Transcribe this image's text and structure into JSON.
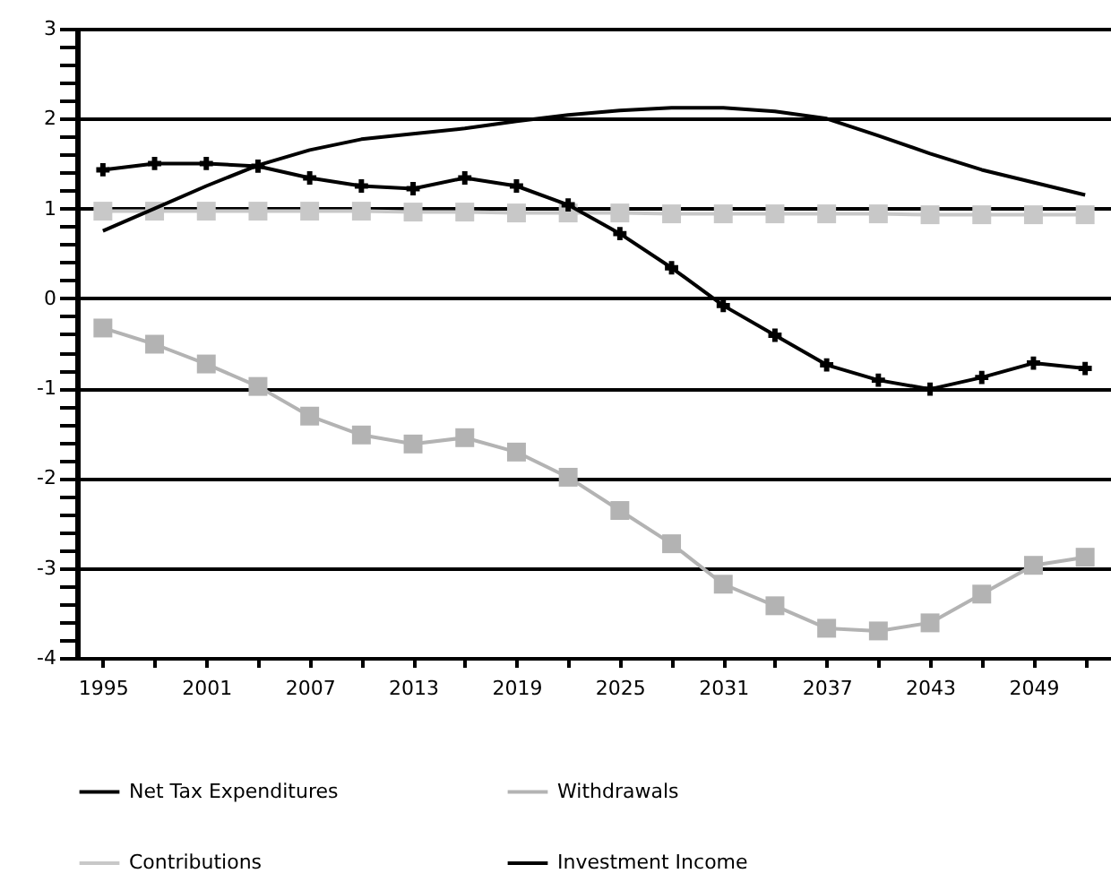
{
  "chart_data": {
    "type": "line",
    "x": [
      1995,
      1998,
      2001,
      2004,
      2007,
      2010,
      2013,
      2016,
      2019,
      2022,
      2025,
      2028,
      2031,
      2034,
      2037,
      2040,
      2043,
      2046,
      2049,
      2052
    ],
    "series": [
      {
        "name": "Net Tax Expenditures",
        "color": "#000000",
        "marker": "cross",
        "values": [
          1.43,
          1.5,
          1.5,
          1.47,
          1.34,
          1.25,
          1.22,
          1.34,
          1.25,
          1.04,
          0.72,
          0.34,
          -0.08,
          -0.41,
          -0.74,
          -0.91,
          -1.01,
          -0.88,
          -0.72,
          -0.78
        ]
      },
      {
        "name": "Withdrawals",
        "color": "#b3b3b3",
        "marker": "square",
        "values": [
          -0.33,
          -0.51,
          -0.73,
          -0.98,
          -1.31,
          -1.52,
          -1.62,
          -1.55,
          -1.71,
          -1.99,
          -2.36,
          -2.73,
          -3.18,
          -3.42,
          -3.67,
          -3.7,
          -3.61,
          -3.29,
          -2.97,
          -2.88
        ]
      },
      {
        "name": "Contributions",
        "color": "#c8c8c8",
        "marker": "square",
        "values": [
          0.97,
          0.97,
          0.97,
          0.97,
          0.97,
          0.97,
          0.96,
          0.96,
          0.95,
          0.95,
          0.95,
          0.94,
          0.94,
          0.94,
          0.94,
          0.94,
          0.93,
          0.93,
          0.93,
          0.93
        ]
      },
      {
        "name": "Investment Income",
        "color": "#000000",
        "marker": "none",
        "values": [
          0.75,
          1.0,
          1.25,
          1.48,
          1.65,
          1.77,
          1.83,
          1.89,
          1.97,
          2.04,
          2.09,
          2.12,
          2.12,
          2.08,
          2.0,
          1.81,
          1.61,
          1.43,
          1.29,
          1.15
        ]
      }
    ],
    "xlim": [
      1993.5,
      2053.5
    ],
    "xticks": [
      1995,
      {
        "value": 1998,
        "label": null
      },
      2001,
      {
        "value": 2004,
        "label": null
      },
      2007,
      {
        "value": 2010,
        "label": null
      },
      2013,
      {
        "value": 2016,
        "label": null
      },
      2019,
      {
        "value": 2022,
        "label": null
      },
      2025,
      {
        "value": 2028,
        "label": null
      },
      2031,
      {
        "value": 2034,
        "label": null
      },
      2037,
      {
        "value": 2040,
        "label": null
      },
      2043,
      {
        "value": 2046,
        "label": null
      },
      2049,
      {
        "value": 2052,
        "label": null
      }
    ],
    "ylim": [
      -4,
      3
    ],
    "yticks": [
      -4,
      {
        "value": -3.8,
        "label": null
      },
      {
        "value": -3.6,
        "label": null
      },
      {
        "value": -3.4,
        "label": null
      },
      {
        "value": -3.2,
        "label": null
      },
      -3,
      {
        "value": -2.8,
        "label": null
      },
      {
        "value": -2.6,
        "label": null
      },
      {
        "value": -2.4,
        "label": null
      },
      {
        "value": -2.2,
        "label": null
      },
      -2,
      {
        "value": -1.8,
        "label": null
      },
      {
        "value": -1.6,
        "label": null
      },
      {
        "value": -1.4,
        "label": null
      },
      {
        "value": -1.2,
        "label": null
      },
      -1,
      {
        "value": -0.8,
        "label": null
      },
      {
        "value": -0.6,
        "label": null
      },
      {
        "value": -0.4,
        "label": null
      },
      {
        "value": -0.2,
        "label": null
      },
      0,
      {
        "value": 0.2,
        "label": null
      },
      {
        "value": 0.4,
        "label": null
      },
      {
        "value": 0.6,
        "label": null
      },
      {
        "value": 0.8,
        "label": null
      },
      1,
      {
        "value": 1.2,
        "label": null
      },
      {
        "value": 1.4,
        "label": null
      },
      {
        "value": 1.6,
        "label": null
      },
      {
        "value": 1.8,
        "label": null
      },
      2,
      {
        "value": 2.2,
        "label": null
      },
      {
        "value": 2.4,
        "label": null
      },
      {
        "value": 2.6,
        "label": null
      },
      {
        "value": 2.8,
        "label": null
      },
      3
    ],
    "grid": "y",
    "legend": "bottom"
  }
}
